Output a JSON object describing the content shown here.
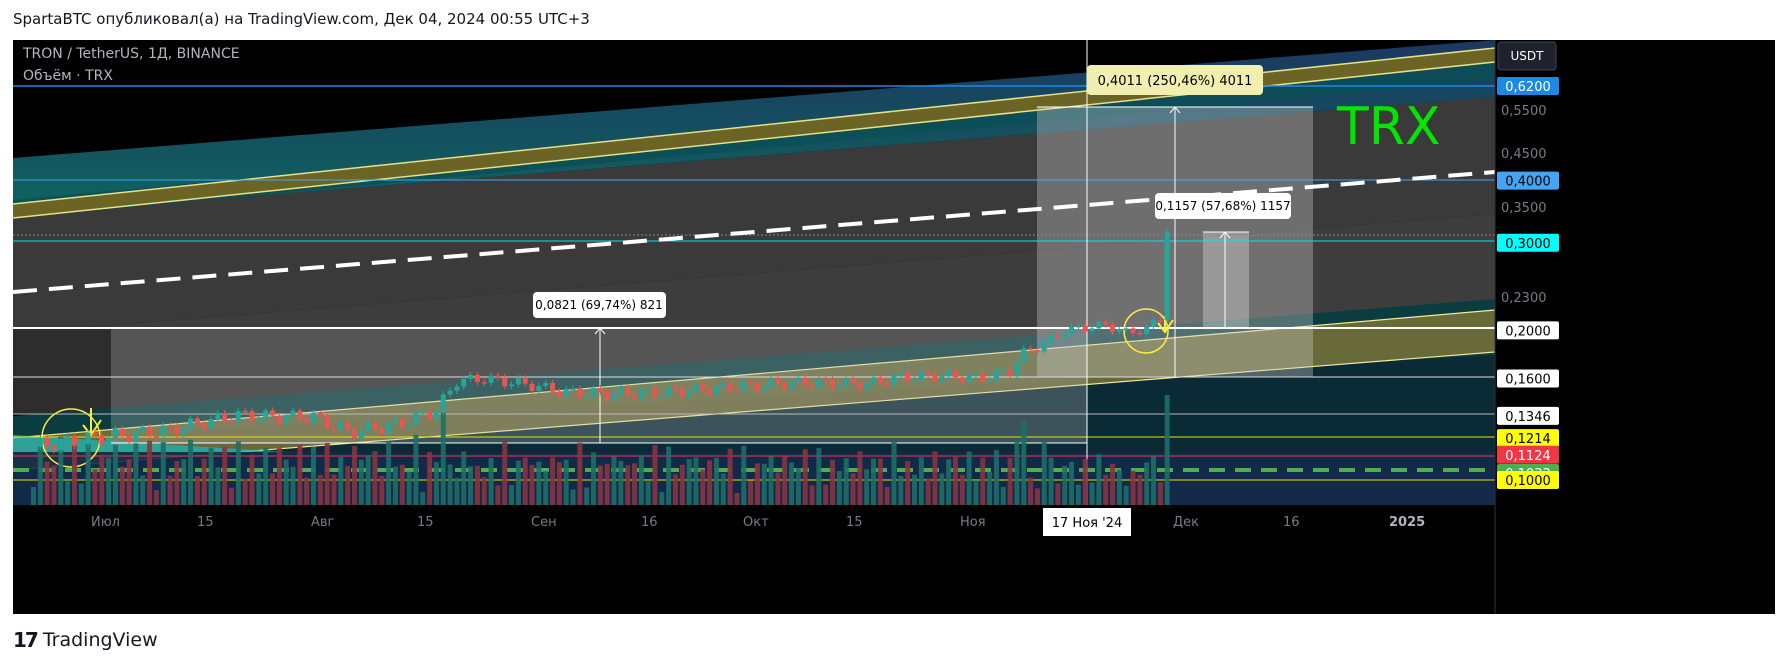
{
  "header": {
    "publisher": "SpartaBTC опубликовал(а) на TradingView.com, Дек 04, 2024 00:55 UTC+3"
  },
  "symbol": {
    "title": "TRON / TetherUS, 1Д, BINANCE",
    "volume_label": "Объём · TRX"
  },
  "watermark": "TRX",
  "currency_button": "USDT",
  "footer": {
    "brand": "TradingView",
    "logo_icon": "tradingview-logo-icon"
  },
  "colors": {
    "up": "#26a69a",
    "down": "#ef5350",
    "watermark": "#00e600",
    "accent_line": "#f5f5a0"
  },
  "measurements": [
    {
      "label": "0,0821 (69,74%) 821"
    },
    {
      "label": "0,4011 (250,46%) 4011"
    },
    {
      "label": "0,1157 (57,68%) 1157"
    }
  ],
  "price_axis": {
    "plain_ticks": [
      "0,5500",
      "0,4500",
      "0,3500",
      "0,2300"
    ],
    "badges": [
      {
        "text": "0,6200",
        "bg": "#1e88e5",
        "fg": "#ffffff"
      },
      {
        "text": "0,4000",
        "bg": "#42a5f5",
        "fg": "#000000"
      },
      {
        "text": "0,3000",
        "bg": "#00ffff",
        "fg": "#000000"
      },
      {
        "text": "0,2000",
        "bg": "#ffffff",
        "fg": "#000000"
      },
      {
        "text": "0,1600",
        "bg": "#ffffff",
        "fg": "#000000"
      },
      {
        "text": "0,1346",
        "bg": "#ffffff",
        "fg": "#000000"
      },
      {
        "text": "0,1214",
        "bg": "#ffff00",
        "fg": "#000000"
      },
      {
        "text": "0,1124",
        "bg": "#f23645",
        "fg": "#ffffff"
      },
      {
        "text": "0,1033",
        "bg": "#4caf50",
        "fg": "#ffffff"
      },
      {
        "text": "0,1000",
        "bg": "#ffff00",
        "fg": "#000000"
      }
    ]
  },
  "time_axis": {
    "labels": [
      "Июл",
      "15",
      "Авг",
      "15",
      "Сен",
      "16",
      "Окт",
      "15",
      "Ноя",
      "Дек",
      "16",
      "2025"
    ],
    "crosshair_label": "17 Ноя '24"
  },
  "chart_data": {
    "type": "candlestick",
    "title": "TRON / TetherUS, 1Д, BINANCE",
    "x_range": [
      "2024-06-17",
      "2025-01-20"
    ],
    "y_scale": "log",
    "ylim": [
      0.1,
      0.62
    ],
    "close_series": [
      {
        "date": "2024-06-20",
        "close": 0.117
      },
      {
        "date": "2024-06-28",
        "close": 0.121
      },
      {
        "date": "2024-07-05",
        "close": 0.124
      },
      {
        "date": "2024-07-10",
        "close": 0.126
      },
      {
        "date": "2024-07-15",
        "close": 0.131
      },
      {
        "date": "2024-07-20",
        "close": 0.135
      },
      {
        "date": "2024-07-25",
        "close": 0.134
      },
      {
        "date": "2024-07-31",
        "close": 0.134
      },
      {
        "date": "2024-08-05",
        "close": 0.125
      },
      {
        "date": "2024-08-12",
        "close": 0.129
      },
      {
        "date": "2024-08-18",
        "close": 0.138
      },
      {
        "date": "2024-08-21",
        "close": 0.158
      },
      {
        "date": "2024-08-25",
        "close": 0.16
      },
      {
        "date": "2024-09-01",
        "close": 0.155
      },
      {
        "date": "2024-09-06",
        "close": 0.15
      },
      {
        "date": "2024-09-12",
        "close": 0.149
      },
      {
        "date": "2024-09-20",
        "close": 0.15
      },
      {
        "date": "2024-10-01",
        "close": 0.154
      },
      {
        "date": "2024-10-10",
        "close": 0.157
      },
      {
        "date": "2024-10-20",
        "close": 0.156
      },
      {
        "date": "2024-10-25",
        "close": 0.161
      },
      {
        "date": "2024-11-01",
        "close": 0.162
      },
      {
        "date": "2024-11-06",
        "close": 0.16
      },
      {
        "date": "2024-11-10",
        "close": 0.166
      },
      {
        "date": "2024-11-12",
        "close": 0.18
      },
      {
        "date": "2024-11-15",
        "close": 0.188
      },
      {
        "date": "2024-11-18",
        "close": 0.2
      },
      {
        "date": "2024-11-24",
        "close": 0.205
      },
      {
        "date": "2024-11-27",
        "close": 0.198
      },
      {
        "date": "2024-11-30",
        "close": 0.201
      },
      {
        "date": "2024-12-02",
        "close": 0.213
      },
      {
        "date": "2024-12-03",
        "close": 0.318
      }
    ]
  }
}
